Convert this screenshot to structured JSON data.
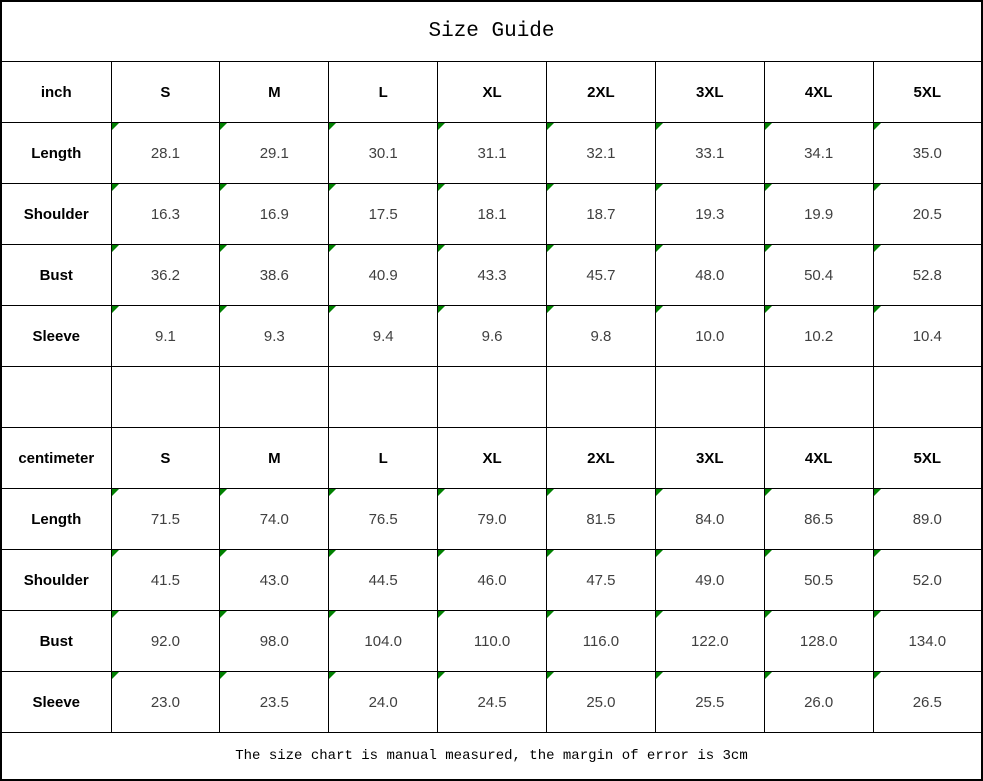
{
  "title": "Size Guide",
  "footer_note": "The size chart is manual measured, the margin of error is 3cm",
  "colors": {
    "border": "#000000",
    "background": "#ffffff",
    "header_text": "#000000",
    "value_text": "#404040",
    "cell_marker_green": "#008000"
  },
  "table": {
    "sections": [
      {
        "unit": "inch",
        "sizes": [
          "S",
          "M",
          "L",
          "XL",
          "2XL",
          "3XL",
          "4XL",
          "5XL"
        ],
        "rows": [
          {
            "label": "Length",
            "values": [
              "28.1",
              "29.1",
              "30.1",
              "31.1",
              "32.1",
              "33.1",
              "34.1",
              "35.0"
            ]
          },
          {
            "label": "Shoulder",
            "values": [
              "16.3",
              "16.9",
              "17.5",
              "18.1",
              "18.7",
              "19.3",
              "19.9",
              "20.5"
            ]
          },
          {
            "label": "Bust",
            "values": [
              "36.2",
              "38.6",
              "40.9",
              "43.3",
              "45.7",
              "48.0",
              "50.4",
              "52.8"
            ]
          },
          {
            "label": "Sleeve",
            "values": [
              "9.1",
              "9.3",
              "9.4",
              "9.6",
              "9.8",
              "10.0",
              "10.2",
              "10.4"
            ]
          }
        ]
      },
      {
        "unit": "centimeter",
        "sizes": [
          "S",
          "M",
          "L",
          "XL",
          "2XL",
          "3XL",
          "4XL",
          "5XL"
        ],
        "rows": [
          {
            "label": "Length",
            "values": [
              "71.5",
              "74.0",
              "76.5",
              "79.0",
              "81.5",
              "84.0",
              "86.5",
              "89.0"
            ]
          },
          {
            "label": "Shoulder",
            "values": [
              "41.5",
              "43.0",
              "44.5",
              "46.0",
              "47.5",
              "49.0",
              "50.5",
              "52.0"
            ]
          },
          {
            "label": "Bust",
            "values": [
              "92.0",
              "98.0",
              "104.0",
              "110.0",
              "116.0",
              "122.0",
              "128.0",
              "134.0"
            ]
          },
          {
            "label": "Sleeve",
            "values": [
              "23.0",
              "23.5",
              "24.0",
              "24.5",
              "25.0",
              "25.5",
              "26.0",
              "26.5"
            ]
          }
        ]
      }
    ]
  },
  "chart_data": {
    "type": "table",
    "title": "Size Guide",
    "note": "The size chart is manual measured, the margin of error is 3cm",
    "columns": [
      "S",
      "M",
      "L",
      "XL",
      "2XL",
      "3XL",
      "4XL",
      "5XL"
    ],
    "sections": [
      {
        "unit": "inch",
        "series": [
          {
            "name": "Length",
            "values": [
              28.1,
              29.1,
              30.1,
              31.1,
              32.1,
              33.1,
              34.1,
              35.0
            ]
          },
          {
            "name": "Shoulder",
            "values": [
              16.3,
              16.9,
              17.5,
              18.1,
              18.7,
              19.3,
              19.9,
              20.5
            ]
          },
          {
            "name": "Bust",
            "values": [
              36.2,
              38.6,
              40.9,
              43.3,
              45.7,
              48.0,
              50.4,
              52.8
            ]
          },
          {
            "name": "Sleeve",
            "values": [
              9.1,
              9.3,
              9.4,
              9.6,
              9.8,
              10.0,
              10.2,
              10.4
            ]
          }
        ]
      },
      {
        "unit": "centimeter",
        "series": [
          {
            "name": "Length",
            "values": [
              71.5,
              74.0,
              76.5,
              79.0,
              81.5,
              84.0,
              86.5,
              89.0
            ]
          },
          {
            "name": "Shoulder",
            "values": [
              41.5,
              43.0,
              44.5,
              46.0,
              47.5,
              49.0,
              50.5,
              52.0
            ]
          },
          {
            "name": "Bust",
            "values": [
              92.0,
              98.0,
              104.0,
              110.0,
              116.0,
              122.0,
              128.0,
              134.0
            ]
          },
          {
            "name": "Sleeve",
            "values": [
              23.0,
              23.5,
              24.0,
              24.5,
              25.0,
              25.5,
              26.0,
              26.5
            ]
          }
        ]
      }
    ]
  }
}
